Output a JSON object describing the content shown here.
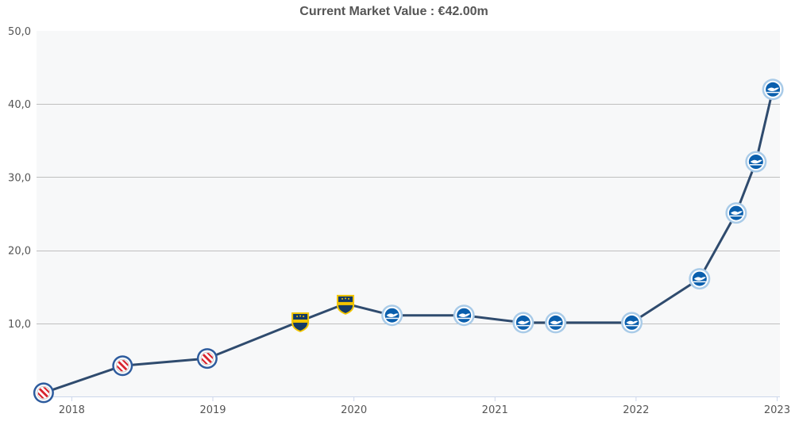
{
  "chart_data": {
    "type": "line",
    "title": "Current Market Value : €42.00m",
    "xlabel": "",
    "ylabel": "",
    "ylim": [
      0,
      50
    ],
    "xlim": [
      2017.75,
      2023.02
    ],
    "y_ticks": [
      "10,0",
      "20,0",
      "30,0",
      "40,0",
      "50,0"
    ],
    "y_tick_values": [
      10,
      20,
      30,
      40,
      50
    ],
    "x_ticks": [
      "2018",
      "2019",
      "2020",
      "2021",
      "2022",
      "2023"
    ],
    "x_tick_values": [
      2018,
      2019,
      2020,
      2021,
      2022,
      2023
    ],
    "grid": true,
    "line_color": "#2f4b6e",
    "plot_background": "#f7f8f9",
    "gridline_color": "#bfbfbf",
    "marker_icons": {
      "argentinos": "argentinos-juniors-crest-icon",
      "boca": "boca-juniors-crest-icon",
      "brighton": "brighton-crest-icon"
    },
    "club_colors": {
      "argentinos": [
        "#d8242e",
        "#ffffff",
        "#2e5c9e"
      ],
      "boca": [
        "#143a66",
        "#f2c500"
      ],
      "brighton": [
        "#0a5fad",
        "#ffffff",
        "#a9cbe8"
      ]
    },
    "points": [
      {
        "x": 2017.8,
        "y": 0.5,
        "club": "argentinos"
      },
      {
        "x": 2018.36,
        "y": 4.2,
        "club": "argentinos"
      },
      {
        "x": 2018.96,
        "y": 5.2,
        "club": "argentinos"
      },
      {
        "x": 2019.62,
        "y": 10.3,
        "club": "boca"
      },
      {
        "x": 2019.94,
        "y": 12.7,
        "club": "boca"
      },
      {
        "x": 2020.27,
        "y": 11.1,
        "club": "brighton"
      },
      {
        "x": 2020.78,
        "y": 11.1,
        "club": "brighton"
      },
      {
        "x": 2021.2,
        "y": 10.1,
        "club": "brighton"
      },
      {
        "x": 2021.43,
        "y": 10.1,
        "club": "brighton"
      },
      {
        "x": 2021.97,
        "y": 10.1,
        "club": "brighton"
      },
      {
        "x": 2022.45,
        "y": 16.1,
        "club": "brighton"
      },
      {
        "x": 2022.71,
        "y": 25.1,
        "club": "brighton"
      },
      {
        "x": 2022.85,
        "y": 32.1,
        "club": "brighton"
      },
      {
        "x": 2022.97,
        "y": 42.0,
        "club": "brighton"
      }
    ]
  }
}
